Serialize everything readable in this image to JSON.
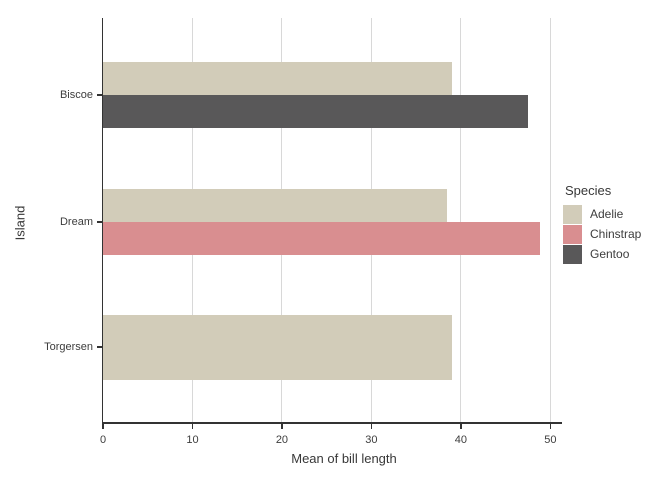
{
  "chart_data": {
    "type": "bar",
    "orientation": "horizontal",
    "title": "",
    "xlabel": "Mean of bill length",
    "ylabel": "Island",
    "categories": [
      "Biscoe",
      "Dream",
      "Torgersen"
    ],
    "series": [
      {
        "name": "Adelie",
        "color": "#d2ccb9",
        "values": [
          38.98,
          38.5,
          38.95
        ]
      },
      {
        "name": "Chinstrap",
        "color": "#d98e90",
        "values": [
          null,
          48.83,
          null
        ]
      },
      {
        "name": "Gentoo",
        "color": "#595859",
        "values": [
          47.5,
          null,
          null
        ]
      }
    ],
    "xlim": [
      0,
      51.3
    ],
    "xticks": [
      0,
      10,
      20,
      30,
      40,
      50
    ],
    "grid": "vertical-major-only",
    "legend_title": "Species",
    "legend_position": "right",
    "panel_background": "#ffffff",
    "axis_line_color": "#333333",
    "gridline_color": "#d8d8d8",
    "text_color": "#3d3d3d"
  },
  "legend": {
    "title": "Species",
    "items": [
      {
        "label": "Adelie",
        "color": "#d2ccb9"
      },
      {
        "label": "Chinstrap",
        "color": "#d98e90"
      },
      {
        "label": "Gentoo",
        "color": "#595859"
      }
    ]
  }
}
